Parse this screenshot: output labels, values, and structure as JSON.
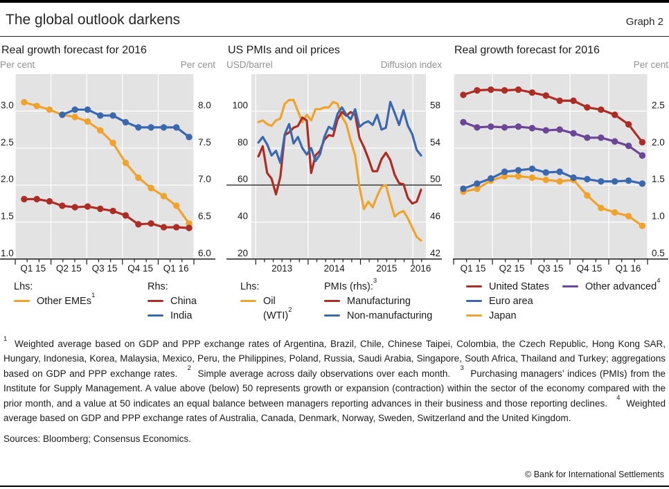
{
  "header": {
    "title": "The global outlook darkens",
    "graph_label": "Graph 2"
  },
  "colors": {
    "yellow": "#efa32d",
    "red": "#ab2d24",
    "blue": "#3a68ae",
    "purple": "#6b4596",
    "plot_bg": "#e3e3e3",
    "grid": "#ffffff",
    "axis_text": "#1a1a1a",
    "unit_text": "#919191",
    "reference_line": "#2b2b2b"
  },
  "chart_data": [
    {
      "type": "line",
      "title": "Real growth forecast for 2016",
      "unit_left": "Per cent",
      "unit_right": "Per cent",
      "x_type": "quarters",
      "x_labels": [
        "Q1 15",
        "Q2 15",
        "Q3 15",
        "Q4 15",
        "Q1 16"
      ],
      "categories": [
        "2015-01",
        "2015-02",
        "2015-03",
        "2015-04",
        "2015-05",
        "2015-06",
        "2015-07",
        "2015-08",
        "2015-09",
        "2015-10",
        "2015-11",
        "2015-12",
        "2016-01",
        "2016-02"
      ],
      "axis_left": {
        "range": [
          1.0,
          3.5
        ],
        "ticks": [
          3.0,
          2.5,
          2.0,
          1.5,
          1.0
        ],
        "labels": [
          "3.0",
          "2.5",
          "2.0",
          "1.5",
          "1.0"
        ]
      },
      "axis_right": {
        "range": [
          6.0,
          8.5
        ],
        "ticks": [
          8.0,
          7.5,
          7.0,
          6.5,
          6.0
        ],
        "labels": [
          "8.0",
          "7.5",
          "7.0",
          "6.5",
          "6.0"
        ]
      },
      "series": [
        {
          "name": "Other EMEs",
          "sup": "1",
          "color": "yellow",
          "axis": "left",
          "dots": true,
          "values": [
            3.12,
            3.07,
            3.02,
            2.95,
            2.92,
            2.86,
            2.74,
            2.57,
            2.3,
            2.1,
            1.96,
            1.85,
            1.72,
            1.48
          ]
        },
        {
          "name": "China",
          "color": "red",
          "axis": "right",
          "dots": true,
          "values": [
            6.81,
            6.81,
            6.78,
            6.72,
            6.7,
            6.71,
            6.68,
            6.65,
            6.59,
            6.47,
            6.48,
            6.43,
            6.43,
            6.42
          ]
        },
        {
          "name": "India",
          "color": "blue",
          "axis": "right",
          "dots": true,
          "values": [
            null,
            null,
            null,
            7.95,
            8.02,
            8.02,
            7.94,
            7.94,
            7.85,
            7.78,
            7.78,
            7.78,
            7.78,
            7.65
          ]
        }
      ],
      "legend": {
        "columns": [
          {
            "header": "Lhs:",
            "items": [
              {
                "color": "yellow",
                "label": "Other EMEs",
                "sup": "1"
              }
            ]
          },
          {
            "header": "Rhs:",
            "items": [
              {
                "color": "red",
                "label": "China"
              },
              {
                "color": "blue",
                "label": "India"
              }
            ]
          }
        ]
      }
    },
    {
      "type": "line",
      "title": "US PMIs and oil prices",
      "unit_left": "USD/barrel",
      "unit_right": "Diffusion index",
      "x_type": "years",
      "x_labels": [
        "2013",
        "2014",
        "2015",
        "2016"
      ],
      "categories": [
        "2013-01",
        "2013-02",
        "2013-03",
        "2013-04",
        "2013-05",
        "2013-06",
        "2013-07",
        "2013-08",
        "2013-09",
        "2013-10",
        "2013-11",
        "2013-12",
        "2014-01",
        "2014-02",
        "2014-03",
        "2014-04",
        "2014-05",
        "2014-06",
        "2014-07",
        "2014-08",
        "2014-09",
        "2014-10",
        "2014-11",
        "2014-12",
        "2015-01",
        "2015-02",
        "2015-03",
        "2015-04",
        "2015-05",
        "2015-06",
        "2015-07",
        "2015-08",
        "2015-09",
        "2015-10",
        "2015-11",
        "2015-12",
        "2016-01",
        "2016-02"
      ],
      "axis_left": {
        "range": [
          20,
          120
        ],
        "ticks": [
          100,
          80,
          60,
          40,
          20
        ],
        "labels": [
          "100",
          "80",
          "60",
          "40",
          "20"
        ]
      },
      "axis_right": {
        "range": [
          42,
          62
        ],
        "ticks": [
          58,
          54,
          50,
          46,
          42
        ],
        "labels": [
          "58",
          "54",
          "50",
          "46",
          "42"
        ]
      },
      "reference_line": {
        "axis": "right",
        "value": 50
      },
      "series": [
        {
          "name": "Oil (WTI)",
          "sup": "2",
          "color": "yellow",
          "axis": "left",
          "dots": false,
          "values": [
            94,
            95,
            93,
            92,
            95,
            96,
            104,
            106,
            106,
            100,
            94,
            98,
            95,
            101,
            101,
            102,
            102,
            105,
            104,
            97,
            93,
            84,
            76,
            59,
            47,
            51,
            48,
            54,
            59,
            60,
            51,
            43,
            45,
            46,
            42,
            37,
            32,
            30
          ]
        },
        {
          "name": "Manufacturing",
          "color": "red",
          "axis": "right",
          "dots": false,
          "values": [
            53.1,
            54.2,
            51.3,
            50.7,
            49.0,
            50.9,
            55.4,
            55.7,
            56.2,
            56.4,
            57.3,
            57.0,
            51.3,
            53.2,
            53.7,
            54.9,
            55.4,
            55.3,
            57.1,
            57.9,
            57.5,
            57.9,
            57.6,
            55.1,
            54.1,
            52.9,
            51.5,
            51.5,
            52.8,
            53.5,
            52.7,
            51.1,
            50.2,
            50.1,
            48.6,
            48.0,
            48.2,
            49.5
          ]
        },
        {
          "name": "Non-manufacturing",
          "color": "blue",
          "axis": "right",
          "dots": false,
          "values": [
            54.6,
            55.2,
            54.4,
            53.2,
            53.7,
            52.4,
            55.5,
            56.6,
            54.5,
            55.2,
            54.0,
            53.3,
            54.0,
            52.6,
            53.3,
            55.2,
            56.3,
            56.0,
            57.7,
            58.4,
            57.6,
            57.1,
            58.2,
            56.3,
            56.7,
            56.9,
            56.5,
            57.6,
            56.0,
            56.2,
            59.0,
            57.8,
            56.5,
            58.1,
            56.4,
            55.5,
            53.8,
            53.2
          ]
        }
      ],
      "legend": {
        "columns": [
          {
            "header": "Lhs:",
            "items": [
              {
                "color": "yellow",
                "label": "Oil",
                "label2": "(WTI)",
                "sup2": "2"
              }
            ]
          },
          {
            "header": "PMIs (rhs):",
            "header_sup": "3",
            "items": [
              {
                "color": "red",
                "label": "Manufacturing"
              },
              {
                "color": "blue",
                "label": "Non-manufacturing"
              }
            ]
          }
        ]
      }
    },
    {
      "type": "line",
      "title": "Real growth forecast for 2016",
      "unit_left": "",
      "unit_right": "Per cent",
      "x_type": "quarters",
      "x_labels": [
        "Q1 15",
        "Q2 15",
        "Q3 15",
        "Q4 15",
        "Q1 16"
      ],
      "categories": [
        "2015-01",
        "2015-02",
        "2015-03",
        "2015-04",
        "2015-05",
        "2015-06",
        "2015-07",
        "2015-08",
        "2015-09",
        "2015-10",
        "2015-11",
        "2015-12",
        "2016-01",
        "2016-02"
      ],
      "axis_left": null,
      "axis_right": {
        "range": [
          0.5,
          3.0
        ],
        "ticks": [
          2.5,
          2.0,
          1.5,
          1.0,
          0.5
        ],
        "labels": [
          "2.5",
          "2.0",
          "1.5",
          "1.0",
          "0.5"
        ]
      },
      "series": [
        {
          "name": "Japan",
          "color": "yellow",
          "axis": "right",
          "dots": true,
          "values": [
            1.41,
            1.45,
            1.56,
            1.62,
            1.62,
            1.6,
            1.57,
            1.55,
            1.57,
            1.36,
            1.19,
            1.13,
            1.08,
            0.95
          ]
        },
        {
          "name": "Euro area",
          "color": "blue",
          "axis": "right",
          "dots": true,
          "values": [
            1.45,
            1.52,
            1.59,
            1.68,
            1.7,
            1.72,
            1.67,
            1.68,
            1.6,
            1.58,
            1.55,
            1.55,
            1.56,
            1.52
          ]
        },
        {
          "name": "Other advanced",
          "sup": "4",
          "color": "purple",
          "axis": "right",
          "dots": true,
          "values": [
            2.35,
            2.28,
            2.29,
            2.28,
            2.29,
            2.27,
            2.24,
            2.25,
            2.2,
            2.14,
            2.14,
            2.09,
            2.03,
            1.9
          ]
        },
        {
          "name": "United States",
          "color": "red",
          "axis": "right",
          "dots": true,
          "values": [
            2.72,
            2.78,
            2.79,
            2.78,
            2.79,
            2.75,
            2.71,
            2.64,
            2.64,
            2.55,
            2.52,
            2.45,
            2.32,
            2.08
          ]
        }
      ],
      "legend": {
        "columns": [
          {
            "items": [
              {
                "color": "red",
                "label": "United States"
              },
              {
                "color": "blue",
                "label": "Euro area"
              },
              {
                "color": "yellow",
                "label": "Japan"
              }
            ]
          },
          {
            "items": [
              {
                "color": "purple",
                "label": "Other advanced",
                "sup": "4"
              }
            ]
          }
        ]
      }
    }
  ],
  "footnotes": [
    {
      "marker": "1",
      "text": "Weighted average based on GDP and PPP exchange rates of Argentina, Brazil, Chile, Chinese Taipei, Colombia, the Czech Republic, Hong Kong SAR, Hungary, Indonesia, Korea, Malaysia, Mexico, Peru, the Philippines, Poland, Russia, Saudi Arabia, Singapore, South Africa, Thailand and Turkey; aggregations based on GDP and PPP exchange rates."
    },
    {
      "marker": "2",
      "text": "Simple average across daily observations over each month."
    },
    {
      "marker": "3",
      "text": "Purchasing managers’ indices (PMIs) from the Institute for Supply Management. A value above (below) 50 represents growth or expansion (contraction) within the sector of the economy compared with the prior month, and a value at 50 indicates an equal balance between managers reporting advances in their business and those reporting declines."
    },
    {
      "marker": "4",
      "text": "Weighted average based on GDP and PPP exchange rates of Australia, Canada, Denmark, Norway, Sweden, Switzerland and the United Kingdom."
    }
  ],
  "footer": {
    "sources": "Sources: Bloomberg; Consensus Economics.",
    "copyright": "© Bank for International Settlements"
  }
}
